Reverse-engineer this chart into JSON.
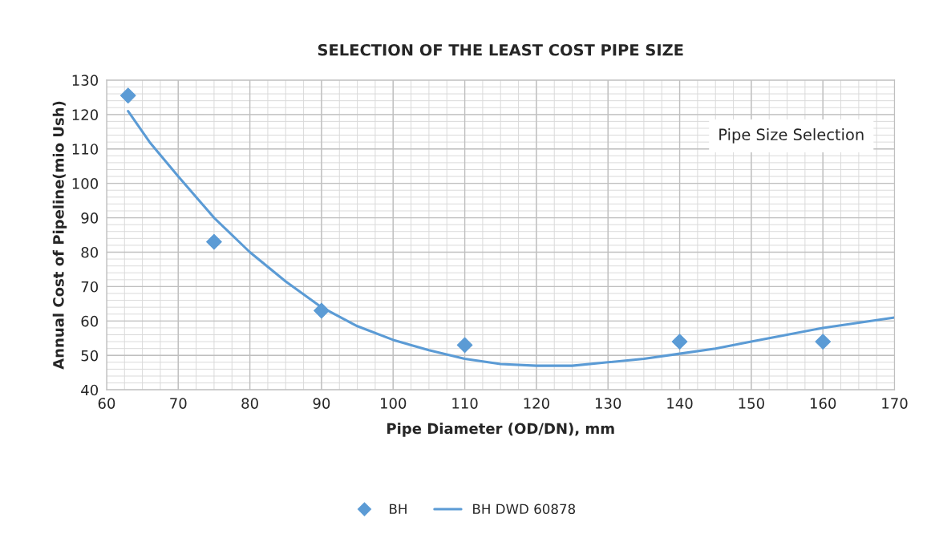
{
  "chart_data": {
    "type": "scatter",
    "title": "SELECTION OF THE LEAST COST PIPE SIZE",
    "xlabel": "Pipe Diameter (OD/DN), mm",
    "ylabel": "Annual Cost of Pipeline(mio Ush)",
    "annotations": [
      "Pipe Size Selection"
    ],
    "series": [
      {
        "name": "BH",
        "marker": "diamond",
        "color": "#5b9bd5",
        "x": [
          63,
          75,
          90,
          110,
          140,
          160
        ],
        "values": [
          125.5,
          83,
          63,
          53,
          54,
          54
        ]
      },
      {
        "name": "BH DWD 60878",
        "type": "line",
        "marker": "none",
        "line_style": "solid",
        "color": "#5b9bd5",
        "x": [
          63,
          66,
          70,
          75,
          80,
          85,
          90,
          95,
          100,
          105,
          110,
          115,
          120,
          125,
          130,
          135,
          140,
          145,
          150,
          155,
          160,
          165,
          170
        ],
        "values": [
          121,
          112,
          102,
          90,
          80,
          71.5,
          64,
          58.5,
          54.5,
          51.5,
          49,
          47.5,
          47,
          47,
          48,
          49,
          50.5,
          52,
          54,
          56,
          58,
          59.5,
          61
        ]
      }
    ],
    "xlim": [
      60,
      170
    ],
    "xticks": [
      60,
      70,
      80,
      90,
      100,
      110,
      120,
      130,
      140,
      150,
      160,
      170
    ],
    "ylim": [
      40,
      130
    ],
    "yticks": [
      40,
      50,
      60,
      70,
      80,
      90,
      100,
      110,
      120,
      130
    ],
    "grid": true,
    "legend": "bottom"
  }
}
